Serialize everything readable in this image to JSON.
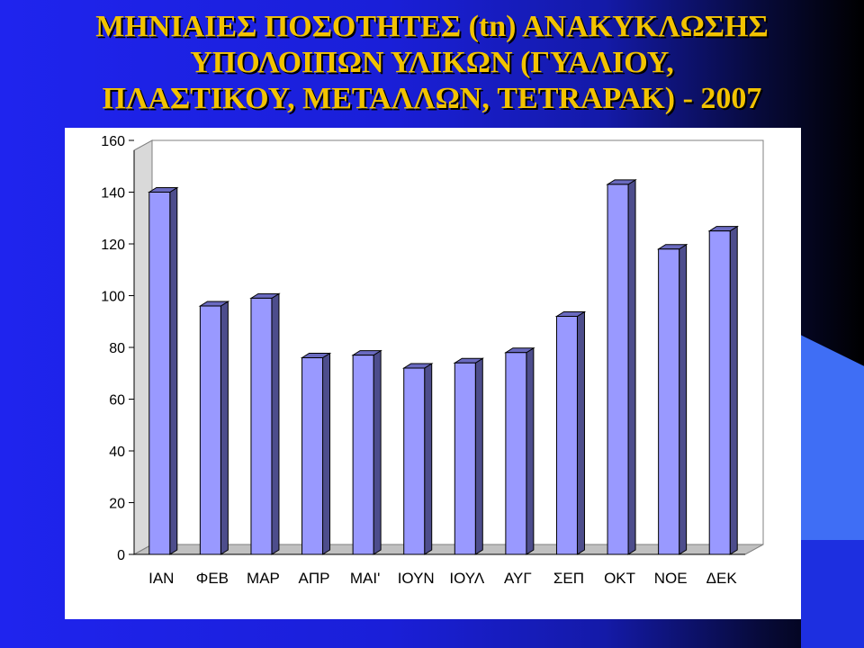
{
  "title_lines": [
    "ΜΗΝΙΑΙΕΣ ΠΟΣΟΤΗΤΕΣ (tn) ΑΝΑΚΥΚΛΩΣΗΣ",
    "ΥΠΟΛΟΙΠΩΝ ΥΛΙΚΩΝ (ΓΥΑΛΙΟΥ,",
    "ΠΛΑΣΤΙΚΟΥ, ΜΕΤΑΛΛΩΝ, TETRAPAK) - 2007"
  ],
  "colors": {
    "title": "#f2c300",
    "bar_front": "#9999ff",
    "bar_side": "#4d4d8c",
    "bar_top": "#6a6ac0"
  },
  "chart_data": {
    "type": "bar",
    "title": "ΜΗΝΙΑΙΕΣ ΠΟΣΟΤΗΤΕΣ (tn) ΑΝΑΚΥΚΛΩΣΗΣ ΥΠΟΛΟΙΠΩΝ ΥΛΙΚΩΝ (ΓΥΑΛΙΟΥ, ΠΛΑΣΤΙΚΟΥ, ΜΕΤΑΛΛΩΝ, TETRAPAK) - 2007",
    "categories": [
      "ΙΑΝ",
      "ΦΕΒ",
      "ΜΑΡ",
      "ΑΠΡ",
      "ΜΑΙ'",
      "ΙΟΥΝ",
      "ΙΟΥΛ",
      "ΑΥΓ",
      "ΣΕΠ",
      "ΟΚΤ",
      "ΝΟΕ",
      "ΔΕΚ"
    ],
    "values": [
      140,
      96,
      99,
      76,
      77,
      72,
      74,
      78,
      92,
      143,
      118,
      125
    ],
    "ylim": [
      0,
      160
    ],
    "yticks": [
      0,
      20,
      40,
      60,
      80,
      100,
      120,
      140,
      160
    ],
    "grid": false,
    "legend": "none",
    "style": "3d"
  }
}
